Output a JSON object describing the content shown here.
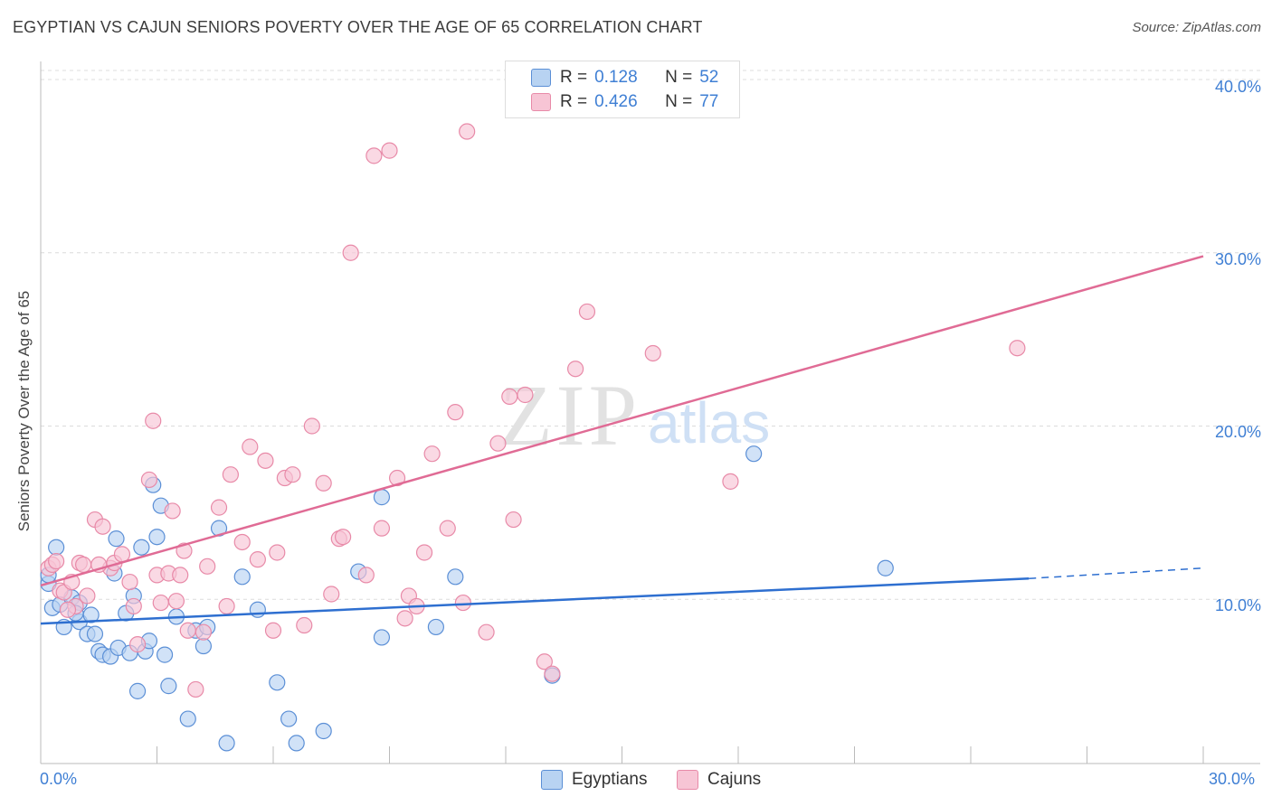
{
  "header": {
    "title": "EGYPTIAN VS CAJUN SENIORS POVERTY OVER THE AGE OF 65 CORRELATION CHART",
    "source": "Source: ZipAtlas.com"
  },
  "watermark": {
    "zip": "ZIP",
    "atlas": "atlas"
  },
  "stats": {
    "egyptians": {
      "r_label": "R =",
      "r": "0.128",
      "n_label": "N =",
      "n": "52"
    },
    "cajuns": {
      "r_label": "R =",
      "r": "0.426",
      "n_label": "N =",
      "n": "77"
    }
  },
  "legend": {
    "egyptians": "Egyptians",
    "cajuns": "Cajuns"
  },
  "colors": {
    "egyptians_fill": "#b8d3f2",
    "egyptians_stroke": "#5b8fd6",
    "egyptians_line": "#2e6fd0",
    "cajuns_fill": "#f7c5d5",
    "cajuns_stroke": "#e88aa8",
    "cajuns_line": "#e06b95",
    "tick_text": "#3f7fd4"
  },
  "chart_data": {
    "type": "scatter",
    "title": "EGYPTIAN VS CAJUN SENIORS POVERTY OVER THE AGE OF 65 CORRELATION CHART",
    "xlabel": "",
    "ylabel": "Seniors Poverty Over the Age of 65",
    "xlim": [
      0,
      30
    ],
    "ylim": [
      0,
      40
    ],
    "x_tick_labels": [
      "0.0%",
      "30.0%"
    ],
    "y_ticks": [
      10,
      20,
      30,
      40
    ],
    "y_tick_labels": [
      "10.0%",
      "20.0%",
      "30.0%",
      "40.0%"
    ],
    "grid": true,
    "legend_position": "bottom-center",
    "series": [
      {
        "name": "Egyptians",
        "r": 0.128,
        "n": 52,
        "trend": {
          "x0": 0,
          "y0": 8.6,
          "x1": 25.5,
          "y1": 11.2,
          "dashed_to_x": 30,
          "dashed_to_y": 11.8
        },
        "points": [
          [
            0.2,
            10.9
          ],
          [
            0.2,
            11.4
          ],
          [
            0.4,
            13.0
          ],
          [
            0.3,
            9.5
          ],
          [
            0.5,
            9.7
          ],
          [
            0.6,
            8.4
          ],
          [
            0.8,
            10.1
          ],
          [
            1.0,
            9.8
          ],
          [
            1.0,
            8.7
          ],
          [
            1.2,
            8.0
          ],
          [
            1.3,
            9.1
          ],
          [
            1.5,
            7.0
          ],
          [
            1.6,
            6.8
          ],
          [
            1.8,
            6.7
          ],
          [
            1.9,
            11.5
          ],
          [
            1.95,
            13.5
          ],
          [
            2.0,
            7.2
          ],
          [
            2.2,
            9.2
          ],
          [
            2.3,
            6.9
          ],
          [
            2.4,
            10.2
          ],
          [
            2.6,
            13.0
          ],
          [
            2.7,
            7.0
          ],
          [
            2.8,
            7.6
          ],
          [
            2.9,
            16.6
          ],
          [
            3.0,
            13.6
          ],
          [
            3.1,
            15.4
          ],
          [
            3.2,
            6.8
          ],
          [
            3.3,
            5.0
          ],
          [
            3.5,
            9.0
          ],
          [
            3.8,
            3.1
          ],
          [
            4.0,
            8.2
          ],
          [
            4.2,
            7.3
          ],
          [
            4.3,
            8.4
          ],
          [
            4.6,
            14.1
          ],
          [
            4.8,
            1.7
          ],
          [
            5.2,
            11.3
          ],
          [
            5.6,
            9.4
          ],
          [
            6.1,
            5.2
          ],
          [
            6.4,
            3.1
          ],
          [
            6.6,
            1.7
          ],
          [
            7.3,
            2.4
          ],
          [
            8.2,
            11.6
          ],
          [
            8.8,
            15.9
          ],
          [
            8.8,
            7.8
          ],
          [
            10.2,
            8.4
          ],
          [
            10.7,
            11.3
          ],
          [
            13.2,
            5.6
          ],
          [
            18.4,
            18.4
          ],
          [
            21.8,
            11.8
          ],
          [
            1.4,
            8.0
          ],
          [
            0.9,
            9.2
          ],
          [
            2.5,
            4.7
          ]
        ]
      },
      {
        "name": "Cajuns",
        "r": 0.426,
        "n": 77,
        "trend": {
          "x0": 0,
          "y0": 10.8,
          "x1": 30,
          "y1": 29.8
        },
        "points": [
          [
            0.2,
            11.8
          ],
          [
            0.3,
            12.0
          ],
          [
            0.4,
            12.2
          ],
          [
            0.5,
            10.5
          ],
          [
            0.6,
            10.4
          ],
          [
            0.8,
            11.0
          ],
          [
            0.9,
            9.6
          ],
          [
            1.0,
            12.1
          ],
          [
            1.1,
            12.0
          ],
          [
            1.2,
            10.2
          ],
          [
            1.4,
            14.6
          ],
          [
            1.6,
            14.2
          ],
          [
            1.8,
            11.8
          ],
          [
            1.9,
            12.1
          ],
          [
            2.1,
            12.6
          ],
          [
            2.3,
            11.0
          ],
          [
            2.4,
            9.6
          ],
          [
            2.5,
            7.4
          ],
          [
            2.8,
            16.9
          ],
          [
            2.9,
            20.3
          ],
          [
            3.0,
            11.4
          ],
          [
            3.1,
            9.8
          ],
          [
            3.3,
            11.5
          ],
          [
            3.4,
            15.1
          ],
          [
            3.6,
            11.4
          ],
          [
            3.7,
            12.8
          ],
          [
            3.8,
            8.2
          ],
          [
            4.0,
            4.8
          ],
          [
            4.2,
            8.1
          ],
          [
            4.3,
            11.9
          ],
          [
            4.6,
            15.3
          ],
          [
            4.8,
            9.6
          ],
          [
            4.9,
            17.2
          ],
          [
            5.2,
            13.3
          ],
          [
            5.4,
            18.8
          ],
          [
            5.6,
            12.3
          ],
          [
            5.8,
            18.0
          ],
          [
            6.0,
            8.2
          ],
          [
            6.1,
            12.7
          ],
          [
            6.3,
            17.0
          ],
          [
            6.5,
            17.2
          ],
          [
            6.8,
            8.5
          ],
          [
            7.0,
            20.0
          ],
          [
            7.3,
            16.7
          ],
          [
            7.5,
            10.3
          ],
          [
            7.7,
            13.5
          ],
          [
            7.8,
            13.6
          ],
          [
            8.0,
            30.0
          ],
          [
            8.4,
            11.4
          ],
          [
            8.6,
            35.6
          ],
          [
            8.8,
            14.1
          ],
          [
            9.0,
            35.9
          ],
          [
            9.2,
            17.0
          ],
          [
            9.4,
            8.9
          ],
          [
            9.5,
            10.2
          ],
          [
            9.7,
            9.6
          ],
          [
            9.9,
            12.7
          ],
          [
            10.1,
            18.4
          ],
          [
            10.5,
            14.1
          ],
          [
            10.7,
            20.8
          ],
          [
            10.9,
            9.8
          ],
          [
            11.0,
            37.0
          ],
          [
            11.5,
            8.1
          ],
          [
            11.8,
            19.0
          ],
          [
            12.1,
            21.7
          ],
          [
            12.2,
            14.6
          ],
          [
            12.5,
            21.8
          ],
          [
            13.0,
            6.4
          ],
          [
            13.2,
            5.7
          ],
          [
            13.8,
            23.3
          ],
          [
            14.1,
            26.6
          ],
          [
            15.8,
            24.2
          ],
          [
            17.8,
            16.8
          ],
          [
            25.2,
            24.5
          ],
          [
            0.7,
            9.4
          ],
          [
            1.5,
            12.0
          ],
          [
            3.5,
            9.9
          ]
        ]
      }
    ]
  }
}
